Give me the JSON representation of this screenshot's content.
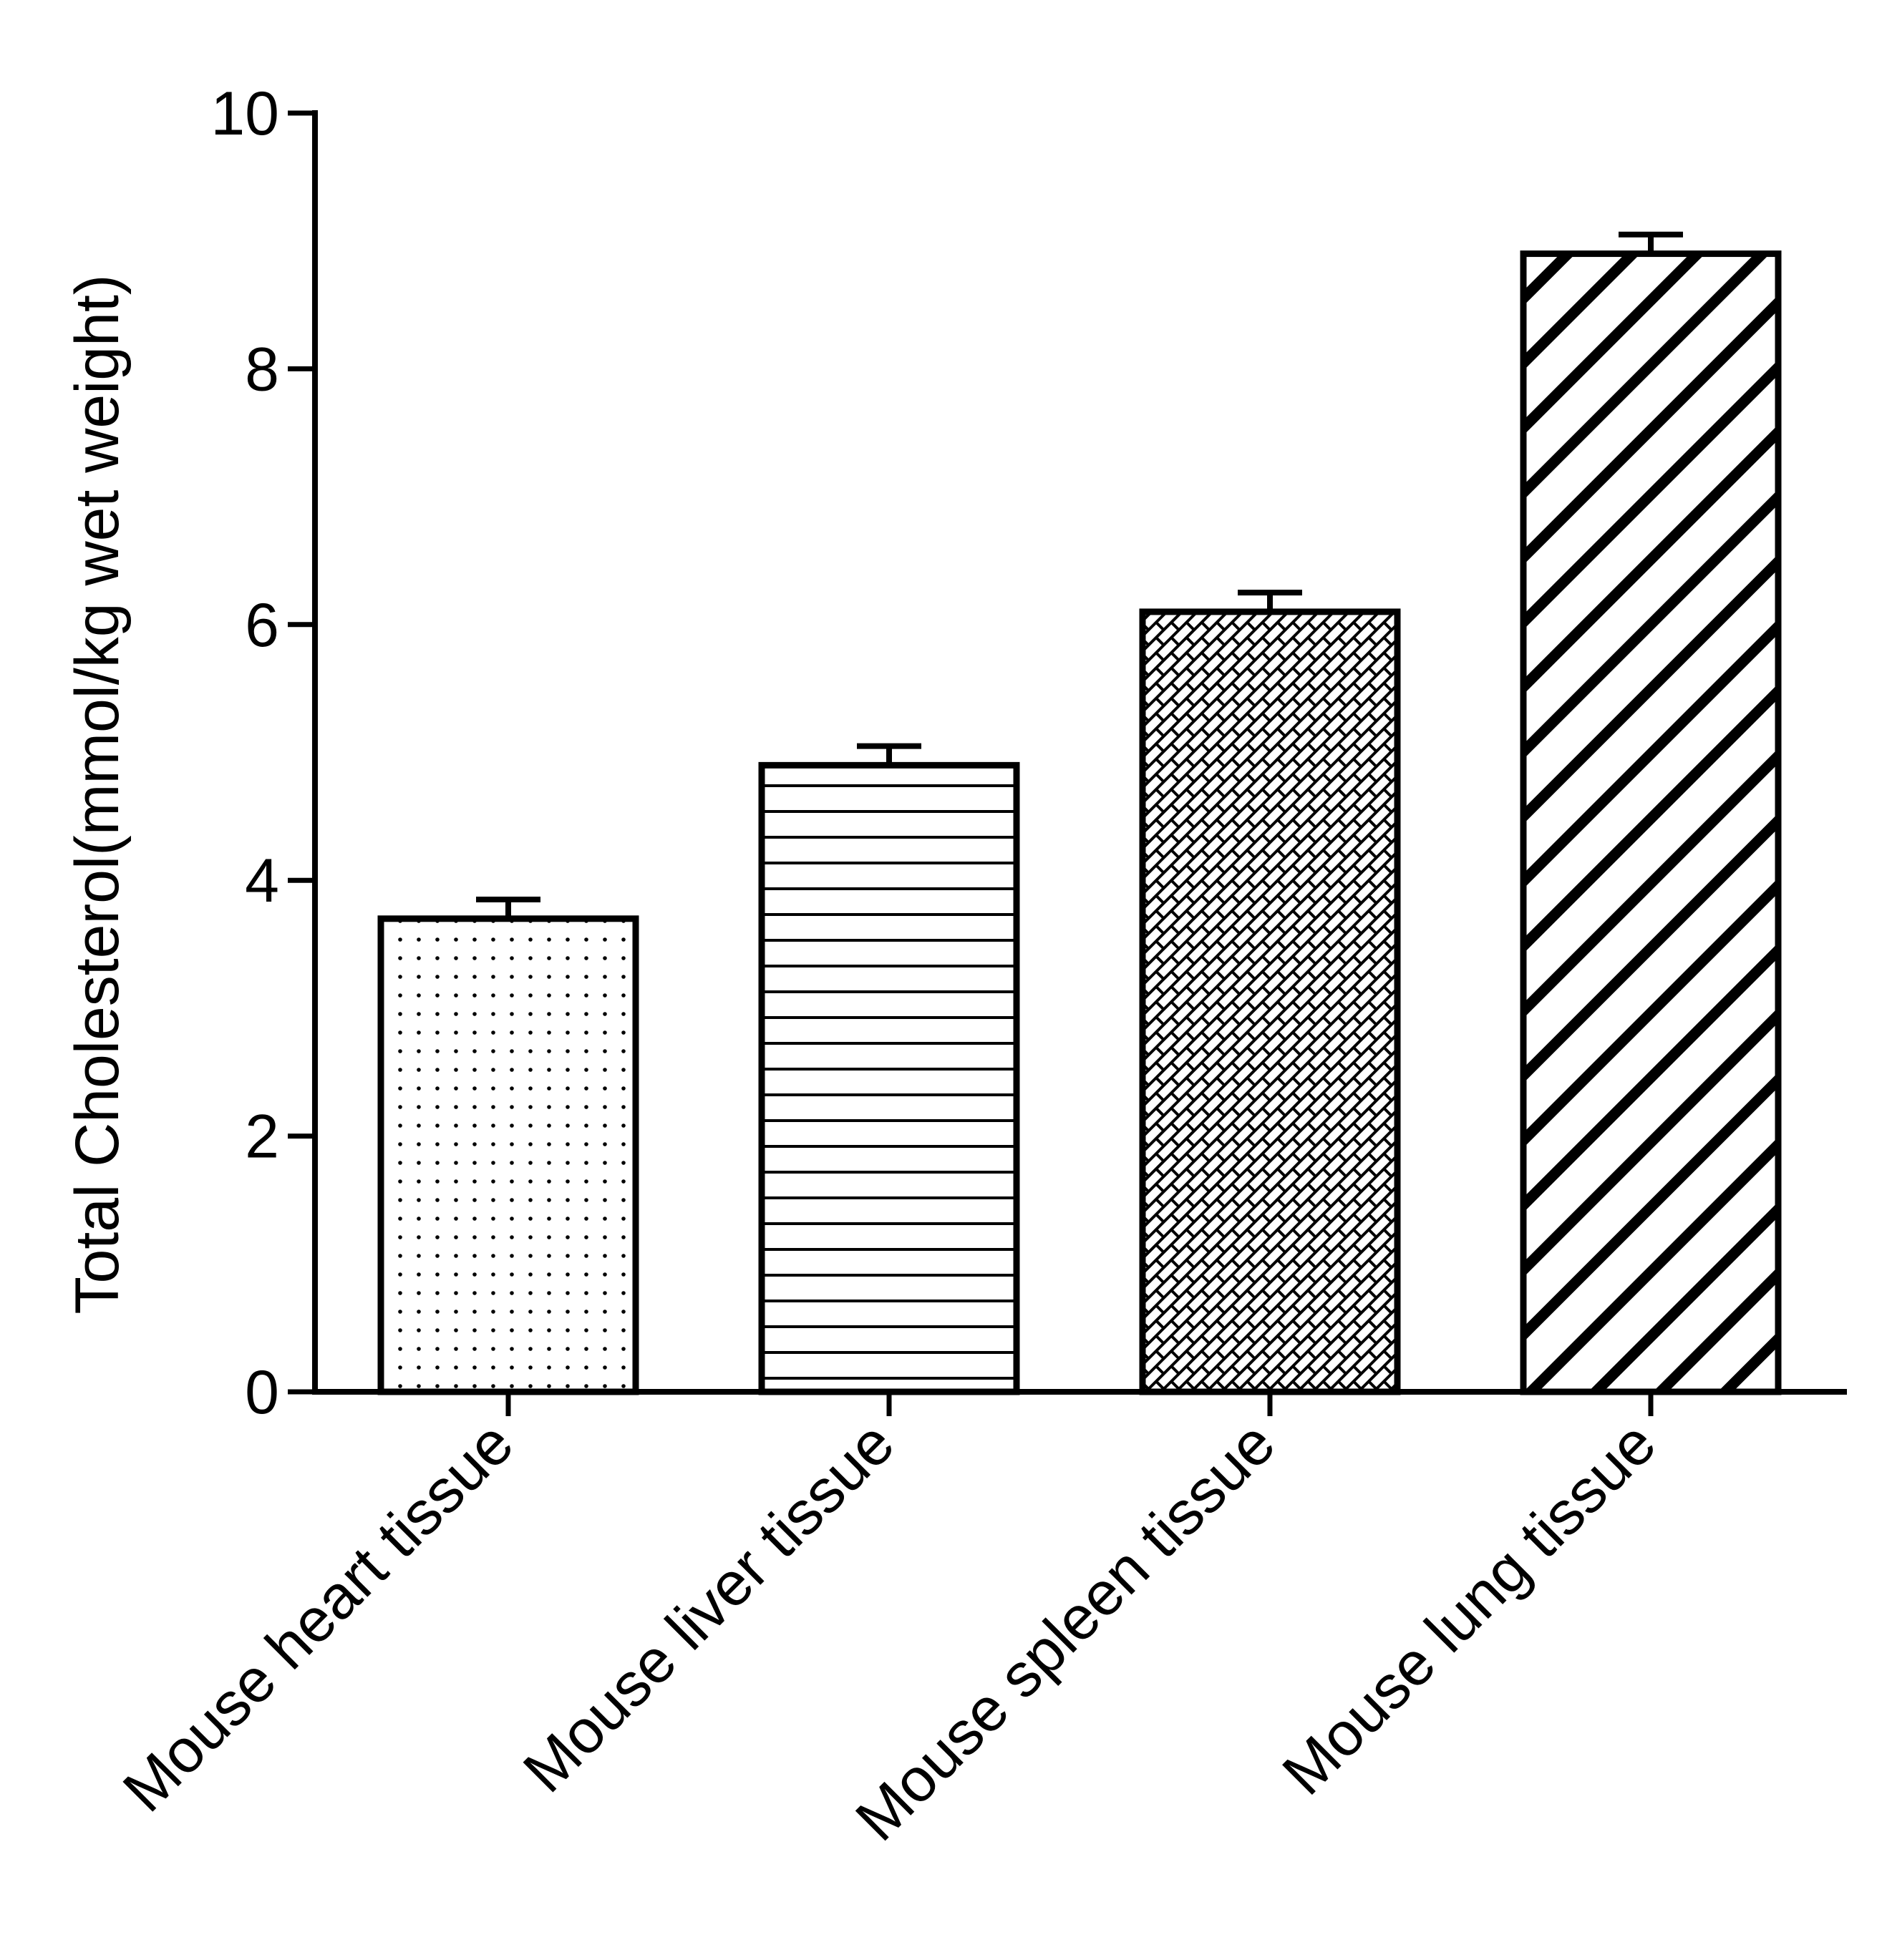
{
  "chart_data": {
    "type": "bar",
    "title": "",
    "xlabel": "",
    "ylabel": "Total Cholesterol(mmol/kg wet weight)",
    "ylim": [
      0,
      10
    ],
    "yticks": [
      0,
      2,
      4,
      6,
      8,
      10
    ],
    "categories": [
      "Mouse heart tissue",
      "Mouse liver tissue",
      "Mouse spleen tissue",
      "Mouse lung tissue"
    ],
    "values": [
      3.7,
      4.9,
      6.1,
      8.9
    ],
    "errors": [
      0.15,
      0.15,
      0.15,
      0.15
    ],
    "patterns": [
      "dots",
      "horizontal-lines",
      "brick-crosshatch",
      "diagonal-stripes"
    ],
    "grid": false,
    "legend": "none"
  },
  "colors": {
    "ink": "#000000",
    "background": "#ffffff"
  }
}
